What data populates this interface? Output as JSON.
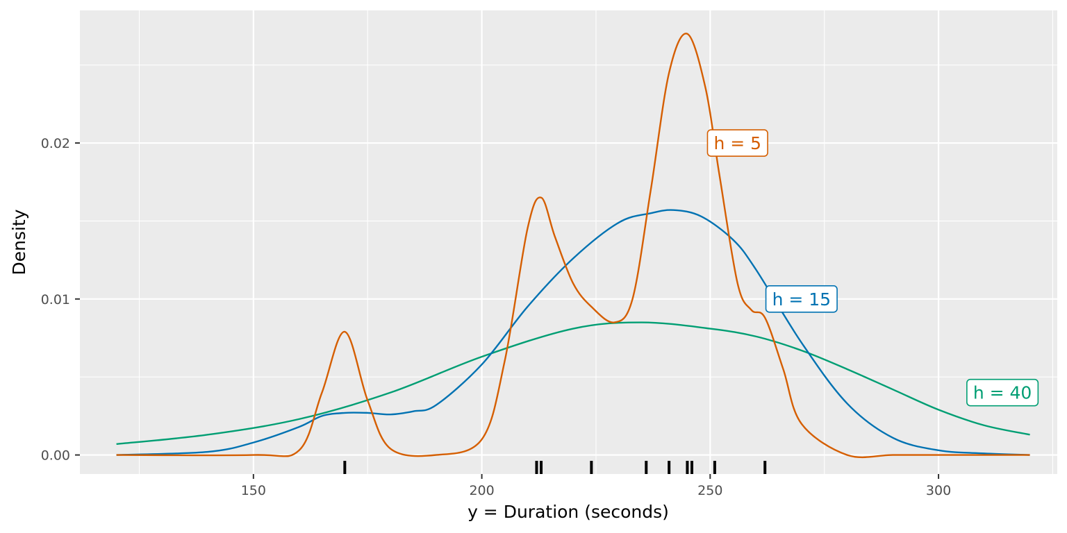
{
  "chart_data": {
    "type": "line",
    "title": "",
    "xlabel": "y = Duration (seconds)",
    "ylabel": "Density",
    "xlim": [
      112,
      326
    ],
    "ylim": [
      -0.00122,
      0.0285
    ],
    "x_ticks": [
      150,
      200,
      250,
      300
    ],
    "x_minor_ticks": [
      125,
      175,
      225,
      275,
      325
    ],
    "y_ticks": [
      0.0,
      0.01,
      0.02
    ],
    "y_tick_labels": [
      "0.00",
      "0.01",
      "0.02"
    ],
    "y_minor_ticks": [
      0.005,
      0.015,
      0.025
    ],
    "grid": true,
    "background": "#ebebeb",
    "rug": [
      170,
      212,
      213,
      224,
      236,
      241,
      245,
      246,
      251,
      262
    ],
    "series": [
      {
        "name": "h = 5",
        "color": "#d55e00",
        "label_at": [
          256,
          0.02
        ],
        "x": [
          120,
          150,
          160,
          165,
          170,
          175,
          180,
          190,
          200,
          205,
          210,
          213,
          216,
          220,
          224,
          229,
          233,
          237,
          241,
          245,
          249,
          252,
          256,
          259,
          262,
          266,
          270,
          280,
          290,
          300,
          320
        ],
        "y": [
          0.0,
          0.0,
          0.0003,
          0.004,
          0.0079,
          0.0035,
          0.0004,
          0.0,
          0.001,
          0.006,
          0.0145,
          0.0165,
          0.014,
          0.011,
          0.0095,
          0.0085,
          0.01,
          0.017,
          0.0245,
          0.027,
          0.0235,
          0.018,
          0.011,
          0.0093,
          0.0088,
          0.0055,
          0.002,
          0.0,
          0.0,
          0.0,
          0.0
        ]
      },
      {
        "name": "h = 15",
        "color": "#0072b2",
        "label_at": [
          270,
          0.01
        ],
        "x": [
          120,
          140,
          150,
          160,
          165,
          170,
          175,
          180,
          185,
          190,
          200,
          210,
          220,
          230,
          237,
          242,
          248,
          255,
          260,
          270,
          280,
          290,
          300,
          310,
          320
        ],
        "y": [
          0.0,
          0.0002,
          0.0008,
          0.0018,
          0.0025,
          0.0027,
          0.0027,
          0.0026,
          0.0028,
          0.0032,
          0.0058,
          0.0095,
          0.0126,
          0.0149,
          0.0155,
          0.0157,
          0.0153,
          0.0138,
          0.0119,
          0.0072,
          0.0033,
          0.0011,
          0.0003,
          0.0001,
          0.0
        ]
      },
      {
        "name": "h = 40",
        "color": "#009e73",
        "label_at": [
          314,
          0.004
        ],
        "x": [
          120,
          140,
          160,
          180,
          200,
          220,
          235,
          250,
          260,
          270,
          280,
          290,
          300,
          310,
          320
        ],
        "y": [
          0.0007,
          0.0013,
          0.0023,
          0.004,
          0.0063,
          0.0081,
          0.0085,
          0.0081,
          0.0076,
          0.0067,
          0.0055,
          0.0042,
          0.0029,
          0.0019,
          0.0013
        ]
      }
    ]
  }
}
